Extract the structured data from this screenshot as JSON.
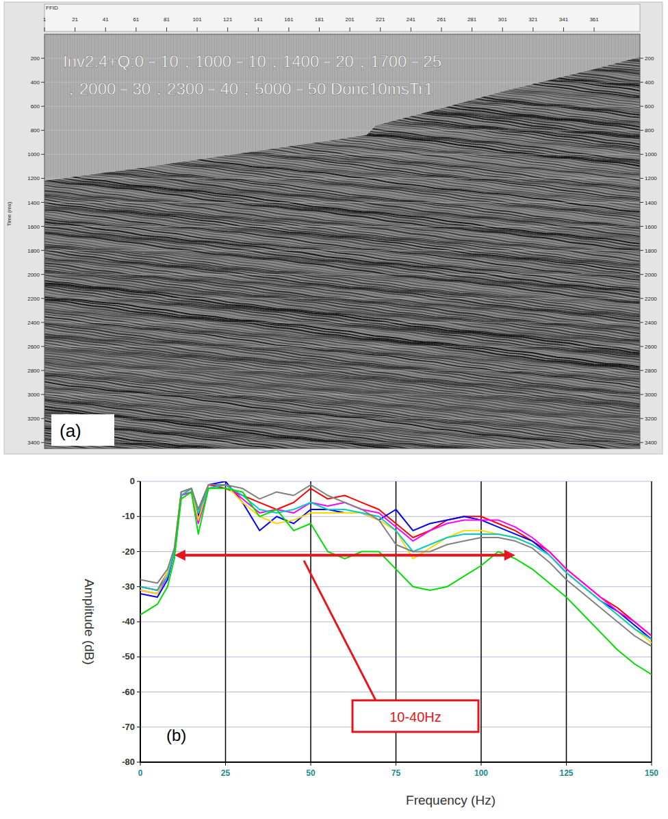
{
  "chart_data": [
    {
      "type": "seismic",
      "label": "(a)",
      "annotations": [
        "Inv2.4+Q:0－10，1000－10，1400－20，1700－25",
        "，2000－30，2300－40，5000－50 Donc10msTr1"
      ],
      "xlabel": "FFID",
      "ylabel": "Time (ms)",
      "xlim": [
        1,
        391
      ],
      "xticks": [
        1,
        21,
        41,
        61,
        81,
        101,
        121,
        141,
        161,
        181,
        201,
        221,
        241,
        261,
        281,
        301,
        321,
        341,
        361
      ],
      "ylim": [
        0,
        3450
      ],
      "yticks": [
        200,
        400,
        600,
        800,
        1000,
        1200,
        1400,
        1600,
        1800,
        2000,
        2200,
        2400,
        2600,
        2800,
        3000,
        3200,
        3400
      ],
      "grid": true,
      "mute_edge": {
        "x": [
          1,
          60,
          120,
          180,
          212,
          218,
          260,
          300,
          361,
          391
        ],
        "y": [
          1220,
          1120,
          1010,
          900,
          840,
          760,
          620,
          480,
          290,
          190
        ]
      }
    },
    {
      "type": "line",
      "label": "(b)",
      "xlabel": "Frequency (Hz)",
      "ylabel": "Amplitude (dB)",
      "xlim": [
        0,
        150
      ],
      "xticks": [
        0,
        25,
        50,
        75,
        100,
        125,
        150
      ],
      "ylim": [
        -80,
        0
      ],
      "yticks": [
        -80,
        -70,
        -60,
        -50,
        -40,
        -30,
        -20,
        -10,
        0
      ],
      "grid": true,
      "x": [
        0,
        5,
        8,
        10,
        12,
        15,
        17,
        20,
        25,
        30,
        35,
        40,
        45,
        50,
        55,
        60,
        65,
        70,
        75,
        80,
        85,
        90,
        95,
        100,
        105,
        110,
        115,
        120,
        125,
        130,
        135,
        140,
        145,
        150
      ],
      "series": [
        {
          "color": "#ff0000",
          "values": [
            -30,
            -31,
            -26,
            -20,
            -4,
            -2,
            -8,
            -1,
            -2,
            -4,
            -6,
            -8,
            -6,
            -2,
            -5,
            -4,
            -6,
            -8,
            -12,
            -16,
            -14,
            -11,
            -10,
            -10,
            -12,
            -14,
            -17,
            -20,
            -25,
            -29,
            -33,
            -36,
            -40,
            -44
          ]
        },
        {
          "color": "#0000ff",
          "values": [
            -32,
            -33,
            -28,
            -20,
            -3,
            -2,
            -10,
            -1,
            0,
            -6,
            -14,
            -10,
            -12,
            -8,
            -8,
            -9,
            -9,
            -11,
            -8,
            -14,
            -12,
            -11,
            -10,
            -11,
            -13,
            -15,
            -17,
            -21,
            -26,
            -30,
            -34,
            -37,
            -41,
            -45
          ]
        },
        {
          "color": "#ff00ff",
          "values": [
            -31,
            -32,
            -27,
            -20,
            -4,
            -3,
            -12,
            -2,
            -1,
            -5,
            -9,
            -8,
            -9,
            -6,
            -7,
            -6,
            -8,
            -9,
            -13,
            -17,
            -14,
            -12,
            -11,
            -11,
            -11,
            -13,
            -16,
            -20,
            -25,
            -29,
            -33,
            -37,
            -40,
            -44
          ]
        },
        {
          "color": "#ffd700",
          "values": [
            -31,
            -32,
            -26,
            -19,
            -3,
            -2,
            -11,
            -1,
            -1,
            -6,
            -10,
            -12,
            -11,
            -9,
            -9,
            -9,
            -9,
            -11,
            -14,
            -22,
            -19,
            -16,
            -14,
            -14,
            -15,
            -16,
            -18,
            -21,
            -26,
            -30,
            -34,
            -38,
            -42,
            -46
          ]
        },
        {
          "color": "#00cccc",
          "values": [
            -30,
            -31,
            -27,
            -20,
            -4,
            -2,
            -9,
            -2,
            -1,
            -4,
            -8,
            -9,
            -8,
            -6,
            -8,
            -8,
            -9,
            -10,
            -14,
            -20,
            -18,
            -16,
            -15,
            -15,
            -15,
            -16,
            -18,
            -21,
            -26,
            -30,
            -34,
            -38,
            -42,
            -45
          ]
        },
        {
          "color": "#808080",
          "values": [
            -28,
            -29,
            -25,
            -19,
            -3,
            -2,
            -8,
            -1,
            -1,
            -2,
            -5,
            -3,
            -4,
            -1,
            -4,
            -6,
            -8,
            -11,
            -18,
            -20,
            -20,
            -18,
            -17,
            -16,
            -16,
            -17,
            -19,
            -23,
            -28,
            -32,
            -36,
            -40,
            -44,
            -47
          ]
        },
        {
          "color": "#00dd00",
          "values": [
            -38,
            -35,
            -30,
            -22,
            -5,
            -3,
            -15,
            -2,
            -2,
            -3,
            -10,
            -8,
            -14,
            -12,
            -20,
            -22,
            -20,
            -20,
            -25,
            -30,
            -31,
            -30,
            -27,
            -24,
            -20,
            -22,
            -25,
            -29,
            -33,
            -38,
            -43,
            -48,
            -52,
            -55
          ]
        }
      ],
      "annotations": [
        {
          "text": "10-40Hz",
          "x_start": 10,
          "x_end": 110,
          "y": -21,
          "point_x": 48
        }
      ]
    }
  ]
}
